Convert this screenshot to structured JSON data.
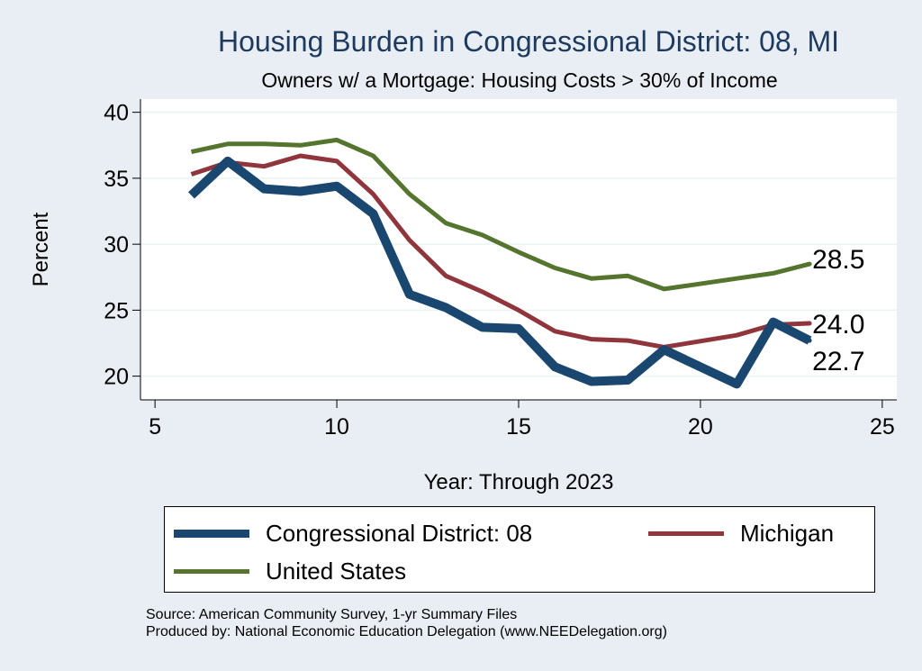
{
  "title": "Housing Burden in Congressional District:  08, MI",
  "subtitle": "Owners w/ a Mortgage: Housing Costs > 30% of Income",
  "source_lines": [
    "Source: American Community Survey, 1-yr Summary Files",
    "Produced by: National Economic Education Delegation (www.NEEDelegation.org)"
  ],
  "colors": {
    "background": "#e8eef3",
    "plot_background": "#ffffff",
    "district": "#1a476f",
    "michigan": "#90353b",
    "us": "#55752f"
  },
  "chart_data": {
    "type": "line",
    "title": "Housing Burden in Congressional District:  08, MI",
    "subtitle": "Owners w/ a Mortgage: Housing Costs > 30% of Income",
    "xlabel": "Year: Through 2023",
    "ylabel": "Percent",
    "xlim": [
      4.6,
      25.4
    ],
    "ylim": [
      18.2,
      41.0
    ],
    "xticks": [
      5,
      10,
      15,
      20,
      25
    ],
    "yticks": [
      20,
      25,
      30,
      35,
      40
    ],
    "grid": true,
    "legend_position": "bottom",
    "x": [
      6,
      7,
      8,
      9,
      10,
      11,
      12,
      13,
      14,
      15,
      16,
      17,
      18,
      19,
      21,
      22,
      23
    ],
    "series": [
      {
        "name": "Congressional District:  08",
        "color": "#1a476f",
        "values": [
          33.7,
          36.3,
          34.2,
          34.0,
          34.4,
          32.3,
          26.2,
          25.2,
          23.7,
          23.6,
          20.7,
          19.6,
          19.7,
          22.0,
          19.4,
          24.1,
          22.7
        ],
        "end_label": "22.7"
      },
      {
        "name": "Michigan",
        "color": "#90353b",
        "values": [
          35.3,
          36.2,
          35.9,
          36.7,
          36.3,
          33.8,
          30.3,
          27.6,
          26.4,
          25.0,
          23.4,
          22.8,
          22.7,
          22.2,
          23.1,
          23.9,
          24.0
        ],
        "end_label": "24.0"
      },
      {
        "name": "United States",
        "color": "#55752f",
        "values": [
          37.0,
          37.6,
          37.6,
          37.5,
          37.9,
          36.7,
          33.8,
          31.6,
          30.7,
          29.4,
          28.2,
          27.4,
          27.6,
          26.6,
          27.4,
          27.8,
          28.5
        ],
        "end_label": "28.5"
      }
    ]
  }
}
